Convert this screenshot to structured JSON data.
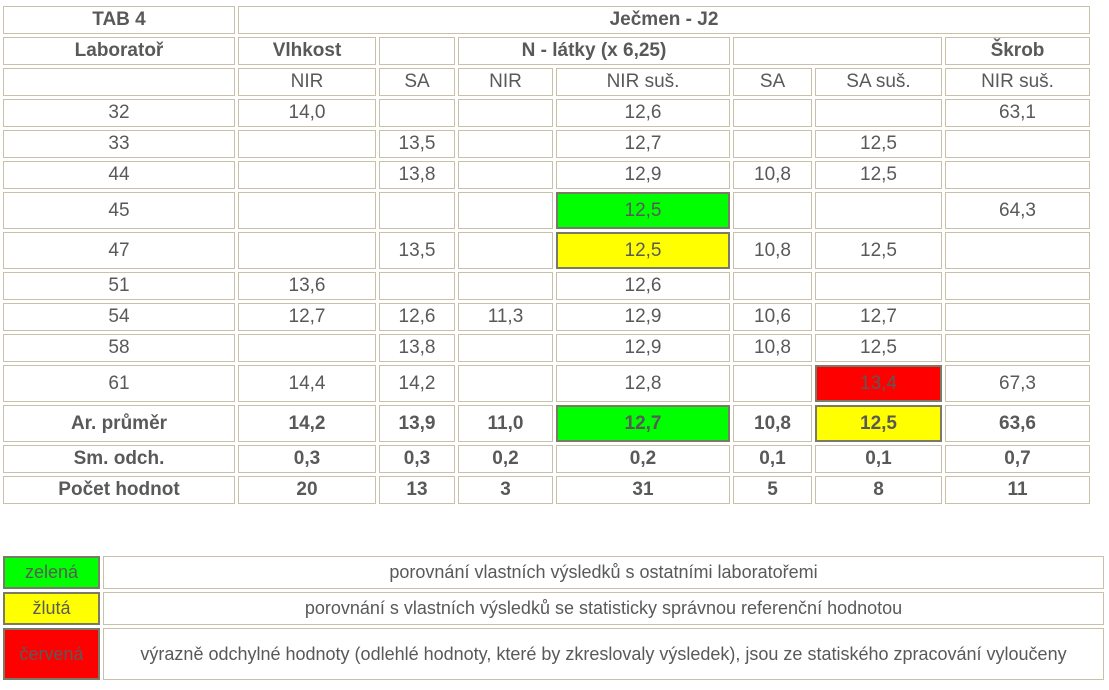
{
  "header": {
    "tab_label": "TAB 4",
    "title": "Ječmen - J2",
    "lab_label": "Laboratoř",
    "group_vlhkost": "Vlhkost",
    "group_n_latky": "N - látky (x 6,25)",
    "group_skrob": "Škrob"
  },
  "subheaders": [
    "NIR",
    "SA",
    "NIR",
    "NIR suš.",
    "SA",
    "SA suš.",
    "NIR suš."
  ],
  "rows": [
    {
      "lab": "32",
      "cells": [
        "14,0",
        "",
        "",
        "12,6",
        "",
        "",
        "63,1"
      ]
    },
    {
      "lab": "33",
      "cells": [
        "",
        "13,5",
        "",
        "12,7",
        "",
        "12,5",
        ""
      ]
    },
    {
      "lab": "44",
      "cells": [
        "",
        "13,8",
        "",
        "12,9",
        "10,8",
        "12,5",
        ""
      ]
    },
    {
      "lab": "45",
      "cells": [
        "",
        "",
        "",
        "12,5",
        "",
        "",
        "64,3"
      ]
    },
    {
      "lab": "47",
      "cells": [
        "",
        "13,5",
        "",
        "12,5",
        "10,8",
        "12,5",
        ""
      ]
    },
    {
      "lab": "51",
      "cells": [
        "13,6",
        "",
        "",
        "12,6",
        "",
        "",
        ""
      ]
    },
    {
      "lab": "54",
      "cells": [
        "12,7",
        "12,6",
        "11,3",
        "12,9",
        "10,6",
        "12,7",
        ""
      ]
    },
    {
      "lab": "58",
      "cells": [
        "",
        "13,8",
        "",
        "12,9",
        "10,8",
        "12,5",
        ""
      ]
    },
    {
      "lab": "61",
      "cells": [
        "14,4",
        "14,2",
        "",
        "12,8",
        "",
        "13,4",
        "67,3"
      ]
    }
  ],
  "stats": [
    {
      "label": "Ar. průměr",
      "cells": [
        "14,2",
        "13,9",
        "11,0",
        "12,7",
        "10,8",
        "12,5",
        "63,6"
      ]
    },
    {
      "label": "Sm. odch.",
      "cells": [
        "0,3",
        "0,3",
        "0,2",
        "0,2",
        "0,1",
        "0,1",
        "0,7"
      ]
    },
    {
      "label": "Počet hodnot",
      "cells": [
        "20",
        "13",
        "3",
        "31",
        "5",
        "8",
        "11"
      ]
    }
  ],
  "colors": {
    "green": "#00ff00",
    "yellow": "#ffff00",
    "red": "#ff0000"
  },
  "legend": [
    {
      "color": "green",
      "label": "zelená",
      "text": "porovnání vlastních výsledků s ostatními laboratořemi"
    },
    {
      "color": "yellow",
      "label": "žlutá",
      "text": "porovnání s vlastních výsledků se statisticky správnou referenční hodnotou"
    },
    {
      "color": "red",
      "label": "červená",
      "text": "výrazně odchylné hodnoty (odlehlé hodnoty, které by zkreslovaly výsledek), jsou ze statiského zpracování vyloučeny"
    }
  ]
}
